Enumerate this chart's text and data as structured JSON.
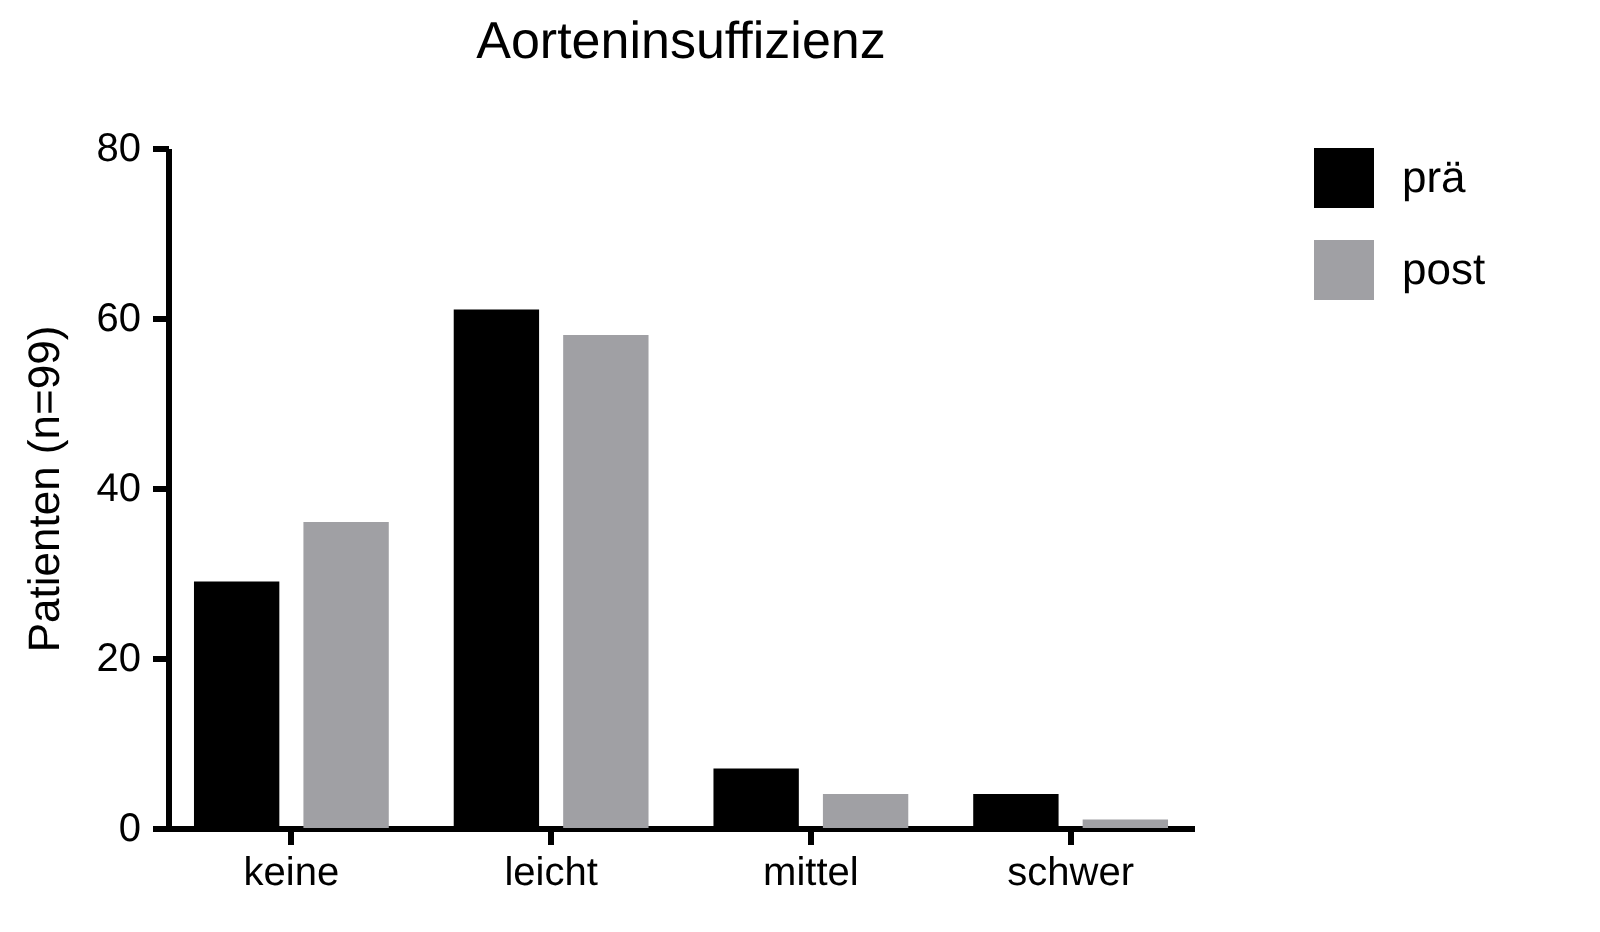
{
  "chart_data": {
    "type": "bar",
    "title": "Aorteninsuffizienz",
    "ylabel": "Patienten (n=99)",
    "categories": [
      "keine",
      "leicht",
      "mittel",
      "schwer"
    ],
    "series": [
      {
        "name": "prä",
        "color": "#000000",
        "values": [
          29,
          61,
          7,
          4
        ]
      },
      {
        "name": "post",
        "color": "#a0a0a4",
        "values": [
          36,
          58,
          4,
          1
        ]
      }
    ],
    "ylim": [
      0,
      80
    ],
    "yticks": [
      0,
      20,
      40,
      60,
      80
    ],
    "grid": false,
    "legend": "top right"
  }
}
